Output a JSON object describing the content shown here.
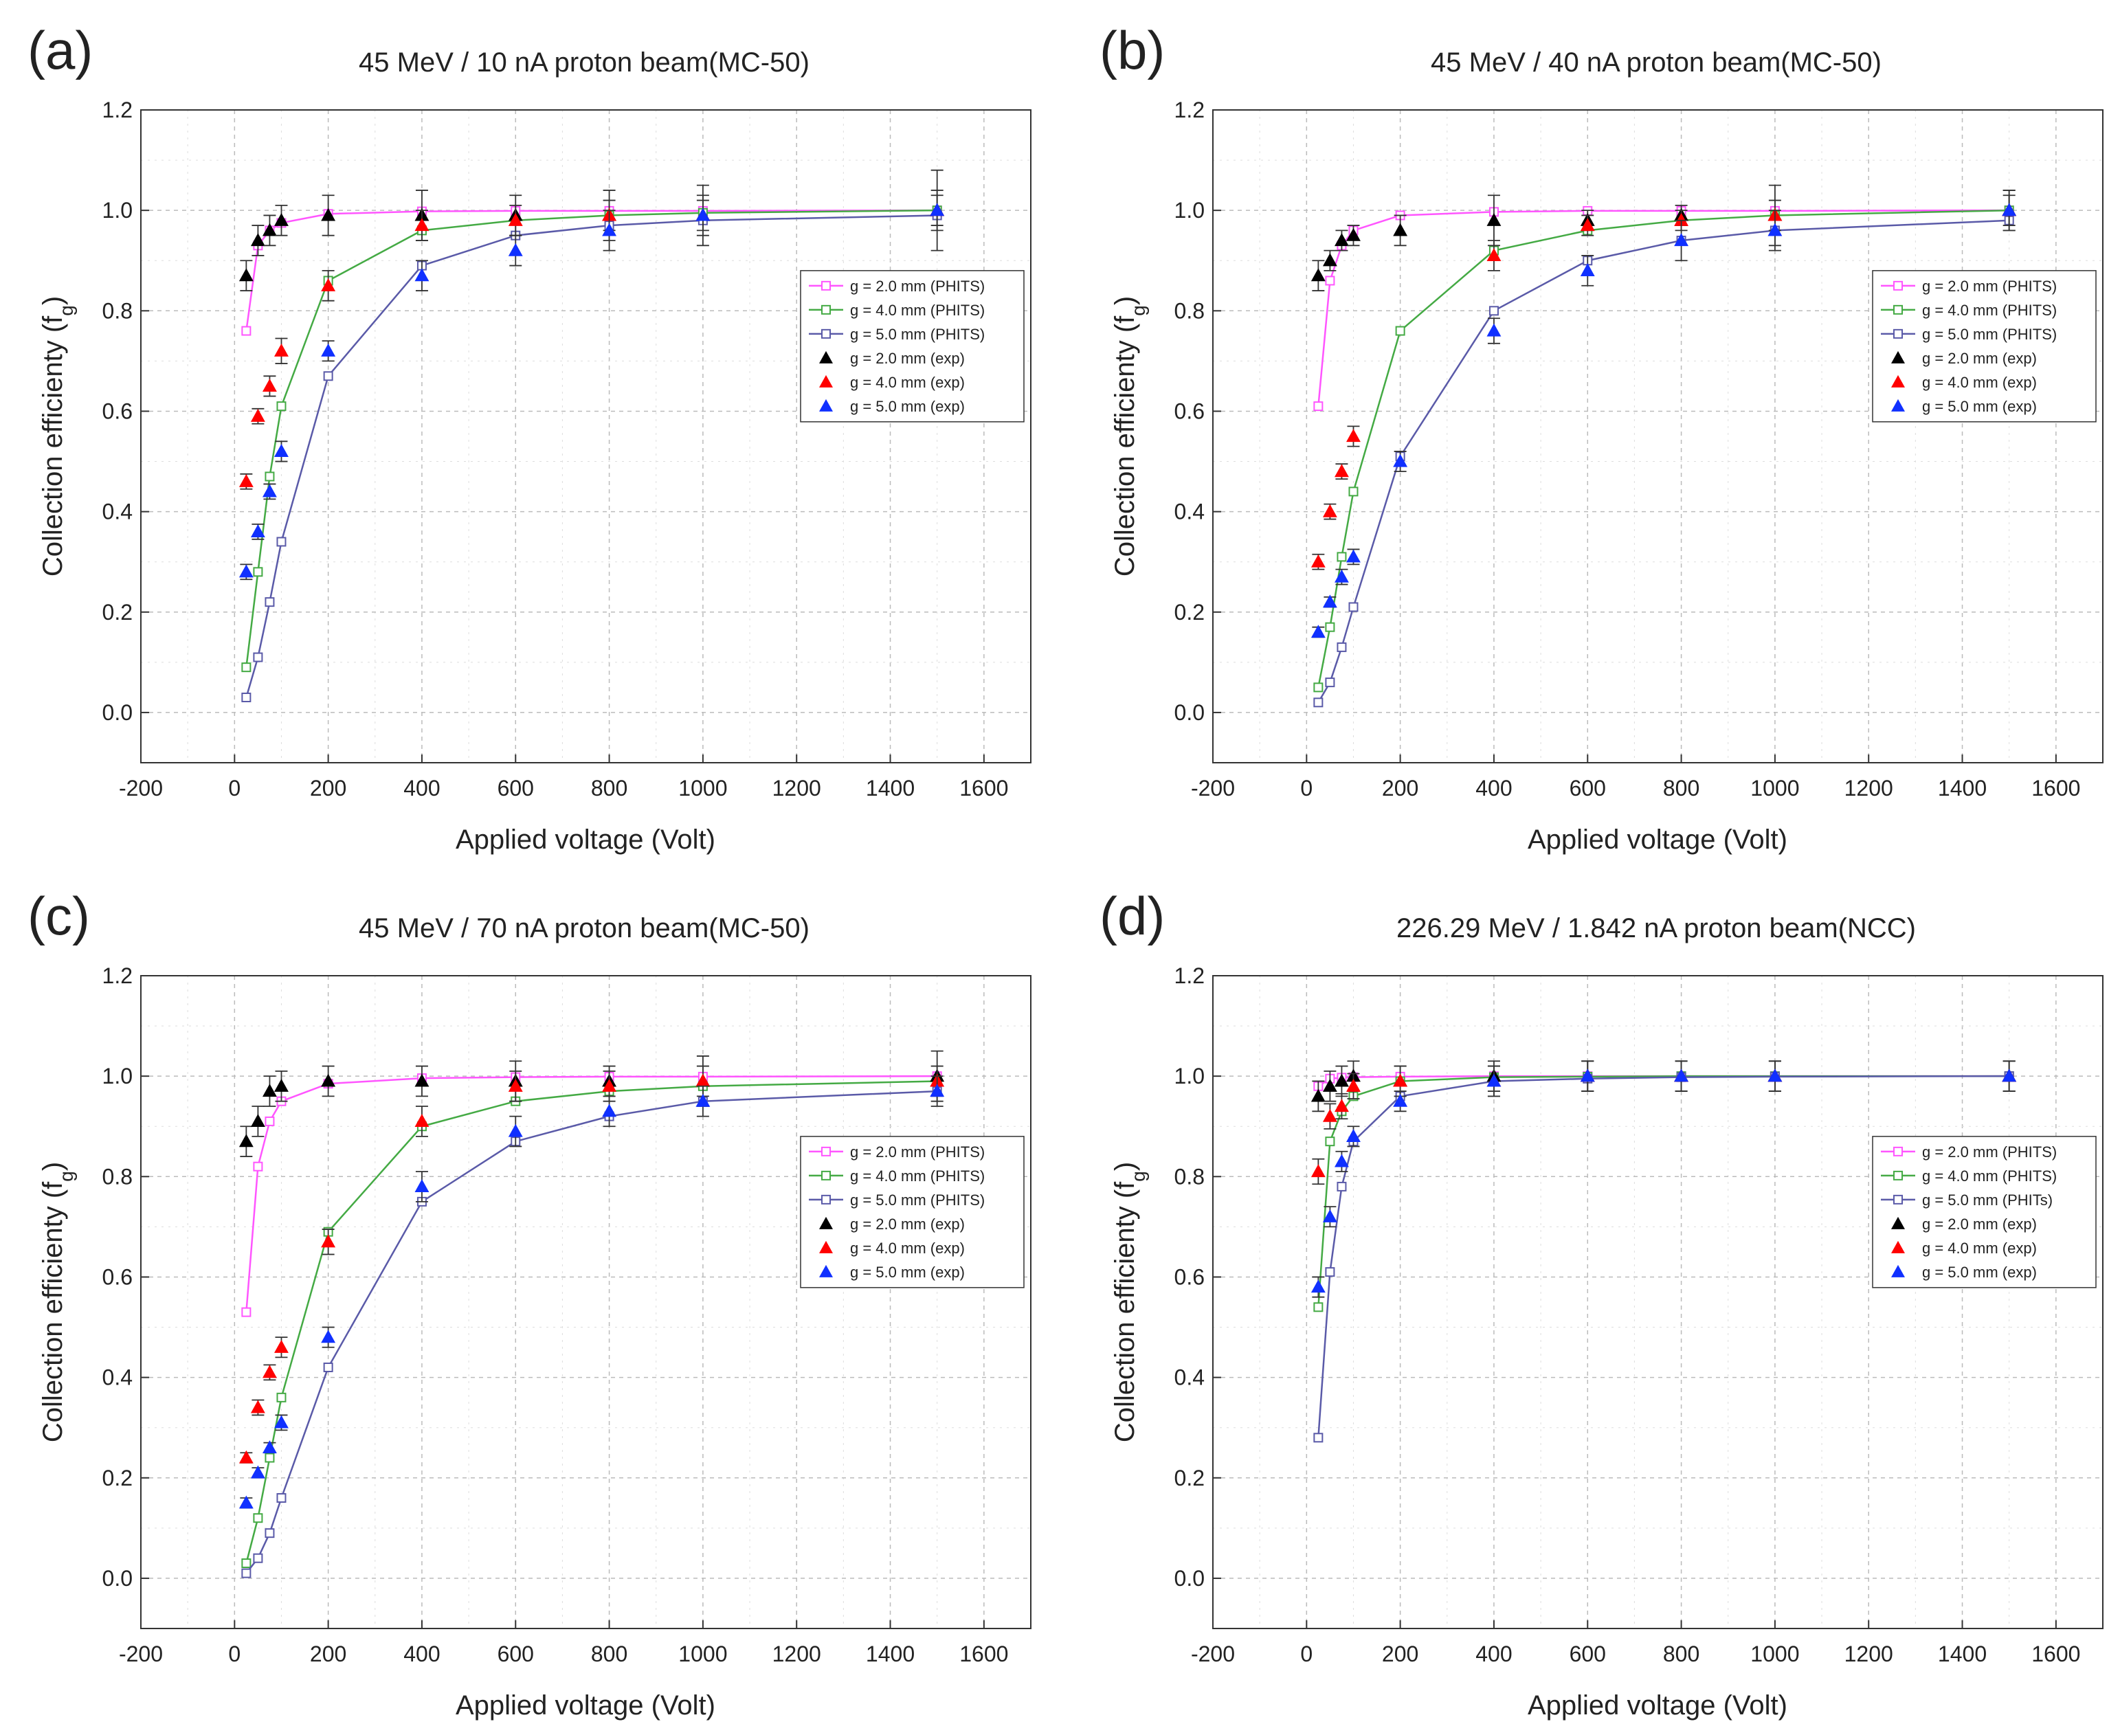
{
  "figure": {
    "xlabel": "Applied voltage (Volt)",
    "ylabel_main": "Collection efficienty (f",
    "ylabel_sub": "g",
    "ylabel_close": ")"
  },
  "colors": {
    "pink": "#ff55ff",
    "green": "#44aa44",
    "navy": "#5a5aa8",
    "black": "#000000",
    "red": "#ff0000",
    "blue": "#1030ff",
    "grid": "#bbbbbb",
    "errorbar": "#333333"
  },
  "chart_data": [
    {
      "panel": "(a)",
      "type": "line",
      "title": "45 MeV / 10 nA proton beam(MC-50)",
      "xlim": [
        -200,
        1700
      ],
      "ylim": [
        -0.1,
        1.2
      ],
      "xticks": [
        -200,
        0,
        200,
        400,
        600,
        800,
        1000,
        1200,
        1400,
        1600
      ],
      "yticks": [
        0.0,
        0.2,
        0.4,
        0.6,
        0.8,
        1.0,
        1.2
      ],
      "grid": true,
      "legend_position": "right",
      "series": [
        {
          "name": "g = 2.0 mm (PHITS)",
          "kind": "sim",
          "color": "#ff55ff",
          "x": [
            25,
            50,
            75,
            100,
            200,
            400,
            600,
            800,
            1000,
            1500
          ],
          "y": [
            0.76,
            0.93,
            0.96,
            0.975,
            0.993,
            0.998,
            0.999,
            0.999,
            0.999,
            1.0
          ]
        },
        {
          "name": "g = 4.0 mm (PHITS)",
          "kind": "sim",
          "color": "#44aa44",
          "x": [
            25,
            50,
            75,
            100,
            200,
            400,
            600,
            800,
            1000,
            1500
          ],
          "y": [
            0.09,
            0.28,
            0.47,
            0.61,
            0.86,
            0.96,
            0.98,
            0.99,
            0.995,
            1.0
          ]
        },
        {
          "name": "g = 5.0 mm (PHITS)",
          "kind": "sim",
          "color": "#5a5aa8",
          "x": [
            25,
            50,
            75,
            100,
            200,
            400,
            600,
            800,
            1000,
            1500
          ],
          "y": [
            0.03,
            0.11,
            0.22,
            0.34,
            0.67,
            0.89,
            0.95,
            0.97,
            0.98,
            0.99
          ]
        },
        {
          "name": "g = 2.0 mm (exp)",
          "kind": "exp",
          "color": "#000000",
          "x": [
            25,
            50,
            75,
            100,
            200,
            400,
            600,
            800,
            1000,
            1500
          ],
          "y": [
            0.87,
            0.94,
            0.96,
            0.98,
            0.99,
            0.99,
            0.99,
            0.99,
            0.99,
            1.0
          ],
          "err": [
            0.03,
            0.03,
            0.03,
            0.03,
            0.04,
            0.05,
            0.04,
            0.05,
            0.06,
            0.08
          ]
        },
        {
          "name": "g = 4.0 mm (exp)",
          "kind": "exp",
          "color": "#ff0000",
          "x": [
            25,
            50,
            75,
            100,
            200,
            400,
            600,
            800,
            1000,
            1500
          ],
          "y": [
            0.46,
            0.59,
            0.65,
            0.72,
            0.85,
            0.97,
            0.98,
            0.99,
            0.99,
            1.0
          ],
          "err": [
            0.015,
            0.015,
            0.02,
            0.025,
            0.03,
            0.03,
            0.03,
            0.03,
            0.03,
            0.03
          ]
        },
        {
          "name": "g = 5.0 mm (exp)",
          "kind": "exp",
          "color": "#1030ff",
          "x": [
            25,
            50,
            75,
            100,
            200,
            400,
            600,
            800,
            1000,
            1500
          ],
          "y": [
            0.28,
            0.36,
            0.44,
            0.52,
            0.72,
            0.87,
            0.92,
            0.96,
            0.99,
            1.0
          ],
          "err": [
            0.015,
            0.015,
            0.015,
            0.02,
            0.02,
            0.03,
            0.03,
            0.04,
            0.04,
            0.04
          ]
        }
      ]
    },
    {
      "panel": "(b)",
      "type": "line",
      "title": "45 MeV / 40 nA proton beam(MC-50)",
      "xlim": [
        -200,
        1700
      ],
      "ylim": [
        -0.1,
        1.2
      ],
      "xticks": [
        -200,
        0,
        200,
        400,
        600,
        800,
        1000,
        1200,
        1400,
        1600
      ],
      "yticks": [
        0.0,
        0.2,
        0.4,
        0.6,
        0.8,
        1.0,
        1.2
      ],
      "grid": true,
      "legend_position": "right",
      "series": [
        {
          "name": "g = 2.0 mm (PHITS)",
          "kind": "sim",
          "color": "#ff55ff",
          "x": [
            25,
            50,
            75,
            100,
            200,
            400,
            600,
            800,
            1000,
            1500
          ],
          "y": [
            0.61,
            0.86,
            0.93,
            0.96,
            0.99,
            0.997,
            0.999,
            0.999,
            0.999,
            1.0
          ]
        },
        {
          "name": "g = 4.0 mm (PHITS)",
          "kind": "sim",
          "color": "#44aa44",
          "x": [
            25,
            50,
            75,
            100,
            200,
            400,
            600,
            800,
            1000,
            1500
          ],
          "y": [
            0.05,
            0.17,
            0.31,
            0.44,
            0.76,
            0.92,
            0.96,
            0.98,
            0.99,
            1.0
          ]
        },
        {
          "name": "g = 5.0 mm (PHITS)",
          "kind": "sim",
          "color": "#5a5aa8",
          "x": [
            25,
            50,
            75,
            100,
            200,
            400,
            600,
            800,
            1000,
            1500
          ],
          "y": [
            0.02,
            0.06,
            0.13,
            0.21,
            0.51,
            0.8,
            0.9,
            0.94,
            0.96,
            0.98
          ]
        },
        {
          "name": "g = 2.0 mm (exp)",
          "kind": "exp",
          "color": "#000000",
          "x": [
            25,
            50,
            75,
            100,
            200,
            400,
            600,
            800,
            1000,
            1500
          ],
          "y": [
            0.87,
            0.9,
            0.94,
            0.95,
            0.96,
            0.98,
            0.98,
            0.99,
            0.99,
            1.0
          ],
          "err": [
            0.03,
            0.02,
            0.02,
            0.02,
            0.03,
            0.05,
            0.02,
            0.02,
            0.06,
            0.04
          ]
        },
        {
          "name": "g = 4.0 mm (exp)",
          "kind": "exp",
          "color": "#ff0000",
          "x": [
            25,
            50,
            75,
            100,
            400,
            600,
            800,
            1000,
            1500
          ],
          "y": [
            0.3,
            0.4,
            0.48,
            0.55,
            0.91,
            0.97,
            0.98,
            0.99,
            1.0
          ],
          "err": [
            0.015,
            0.015,
            0.015,
            0.02,
            0.03,
            0.02,
            0.02,
            0.03,
            0.03
          ]
        },
        {
          "name": "g = 5.0 mm (exp)",
          "kind": "exp",
          "color": "#1030ff",
          "x": [
            25,
            50,
            75,
            100,
            200,
            400,
            600,
            800,
            1000,
            1500
          ],
          "y": [
            0.16,
            0.22,
            0.27,
            0.31,
            0.5,
            0.76,
            0.88,
            0.94,
            0.96,
            1.0
          ],
          "err": [
            0.01,
            0.01,
            0.015,
            0.015,
            0.02,
            0.025,
            0.03,
            0.04,
            0.04,
            0.04
          ]
        }
      ]
    },
    {
      "panel": "(c)",
      "type": "line",
      "title": "45 MeV / 70 nA proton beam(MC-50)",
      "xlim": [
        -200,
        1700
      ],
      "ylim": [
        -0.1,
        1.2
      ],
      "xticks": [
        -200,
        0,
        200,
        400,
        600,
        800,
        1000,
        1200,
        1400,
        1600
      ],
      "yticks": [
        0.0,
        0.2,
        0.4,
        0.6,
        0.8,
        1.0,
        1.2
      ],
      "grid": true,
      "legend_position": "right",
      "series": [
        {
          "name": "g = 2.0 mm (PHITS)",
          "kind": "sim",
          "color": "#ff55ff",
          "x": [
            25,
            50,
            75,
            100,
            200,
            400,
            600,
            800,
            1000,
            1500
          ],
          "y": [
            0.53,
            0.82,
            0.91,
            0.95,
            0.985,
            0.996,
            0.998,
            0.999,
            0.999,
            1.0
          ]
        },
        {
          "name": "g = 4.0 mm (PHITS)",
          "kind": "sim",
          "color": "#44aa44",
          "x": [
            25,
            50,
            75,
            100,
            200,
            400,
            600,
            800,
            1000,
            1500
          ],
          "y": [
            0.03,
            0.12,
            0.24,
            0.36,
            0.69,
            0.9,
            0.95,
            0.97,
            0.98,
            0.99
          ]
        },
        {
          "name": "g = 5.0 mm (PHITS)",
          "kind": "sim",
          "color": "#5a5aa8",
          "x": [
            25,
            50,
            75,
            100,
            200,
            400,
            600,
            800,
            1000,
            1500
          ],
          "y": [
            0.01,
            0.04,
            0.09,
            0.16,
            0.42,
            0.75,
            0.87,
            0.92,
            0.95,
            0.97
          ]
        },
        {
          "name": "g = 2.0 mm (exp)",
          "kind": "exp",
          "color": "#000000",
          "x": [
            25,
            50,
            75,
            100,
            200,
            400,
            600,
            800,
            1000,
            1500
          ],
          "y": [
            0.87,
            0.91,
            0.97,
            0.98,
            0.99,
            0.99,
            0.99,
            0.99,
            0.99,
            1.0
          ],
          "err": [
            0.03,
            0.03,
            0.03,
            0.03,
            0.03,
            0.03,
            0.04,
            0.03,
            0.05,
            0.05
          ]
        },
        {
          "name": "g = 4.0 mm (exp)",
          "kind": "exp",
          "color": "#ff0000",
          "x": [
            25,
            50,
            75,
            100,
            200,
            400,
            600,
            800,
            1000,
            1500
          ],
          "y": [
            0.24,
            0.34,
            0.41,
            0.46,
            0.67,
            0.91,
            0.98,
            0.98,
            0.99,
            0.99
          ],
          "err": [
            0.01,
            0.015,
            0.015,
            0.02,
            0.025,
            0.03,
            0.03,
            0.03,
            0.03,
            0.03
          ]
        },
        {
          "name": "g = 5.0 mm (exp)",
          "kind": "exp",
          "color": "#1030ff",
          "x": [
            25,
            50,
            75,
            100,
            200,
            400,
            600,
            800,
            1000,
            1500
          ],
          "y": [
            0.15,
            0.21,
            0.26,
            0.31,
            0.48,
            0.78,
            0.89,
            0.93,
            0.95,
            0.97
          ],
          "err": [
            0.01,
            0.01,
            0.01,
            0.015,
            0.02,
            0.03,
            0.03,
            0.03,
            0.03,
            0.03
          ]
        }
      ]
    },
    {
      "panel": "(d)",
      "type": "line",
      "title": "226.29 MeV / 1.842 nA proton beam(NCC)",
      "xlim": [
        -200,
        1700
      ],
      "ylim": [
        -0.1,
        1.2
      ],
      "xticks": [
        -200,
        0,
        200,
        400,
        600,
        800,
        1000,
        1200,
        1400,
        1600
      ],
      "yticks": [
        0.0,
        0.2,
        0.4,
        0.6,
        0.8,
        1.0,
        1.2
      ],
      "grid": true,
      "legend_position": "right",
      "series": [
        {
          "name": "g = 2.0 mm (PHITS)",
          "kind": "sim",
          "color": "#ff55ff",
          "x": [
            25,
            50,
            75,
            100,
            200,
            400,
            600,
            800,
            1000,
            1500
          ],
          "y": [
            0.98,
            0.995,
            0.997,
            0.998,
            0.999,
            1.0,
            1.0,
            1.0,
            1.0,
            1.0
          ]
        },
        {
          "name": "g = 4.0 mm (PHITS)",
          "kind": "sim",
          "color": "#44aa44",
          "x": [
            25,
            50,
            75,
            100,
            200,
            400,
            600,
            800,
            1000,
            1500
          ],
          "y": [
            0.54,
            0.87,
            0.93,
            0.96,
            0.99,
            0.998,
            0.999,
            1.0,
            1.0,
            1.0
          ]
        },
        {
          "name": "g = 5.0 mm (PHITs)",
          "kind": "sim",
          "color": "#5a5aa8",
          "x": [
            25,
            50,
            75,
            100,
            200,
            400,
            600,
            800,
            1000,
            1500
          ],
          "y": [
            0.28,
            0.61,
            0.78,
            0.87,
            0.96,
            0.99,
            0.995,
            0.998,
            0.999,
            1.0
          ]
        },
        {
          "name": "g = 2.0 mm (exp)",
          "kind": "exp",
          "color": "#000000",
          "x": [
            25,
            50,
            75,
            100,
            200,
            400,
            600,
            800,
            1000,
            1500
          ],
          "y": [
            0.96,
            0.98,
            0.99,
            1.0,
            0.99,
            1.0,
            1.0,
            1.0,
            1.0,
            1.0
          ],
          "err": [
            0.03,
            0.03,
            0.03,
            0.03,
            0.03,
            0.03,
            0.03,
            0.03,
            0.03,
            0.03
          ]
        },
        {
          "name": "g = 4.0 mm (exp)",
          "kind": "exp",
          "color": "#ff0000",
          "x": [
            25,
            50,
            75,
            100,
            200,
            400,
            600,
            800,
            1000,
            1500
          ],
          "y": [
            0.81,
            0.92,
            0.94,
            0.98,
            0.99,
            0.99,
            1.0,
            1.0,
            1.0,
            1.0
          ],
          "err": [
            0.025,
            0.025,
            0.025,
            0.025,
            0.03,
            0.03,
            0.03,
            0.03,
            0.03,
            0.03
          ]
        },
        {
          "name": "g = 5.0 mm (exp)",
          "kind": "exp",
          "color": "#1030ff",
          "x": [
            25,
            50,
            75,
            100,
            200,
            400,
            600,
            800,
            1000,
            1500
          ],
          "y": [
            0.58,
            0.72,
            0.83,
            0.88,
            0.95,
            0.99,
            1.0,
            1.0,
            1.0,
            1.0
          ],
          "err": [
            0.02,
            0.02,
            0.02,
            0.02,
            0.02,
            0.03,
            0.03,
            0.03,
            0.03,
            0.03
          ]
        }
      ]
    }
  ]
}
